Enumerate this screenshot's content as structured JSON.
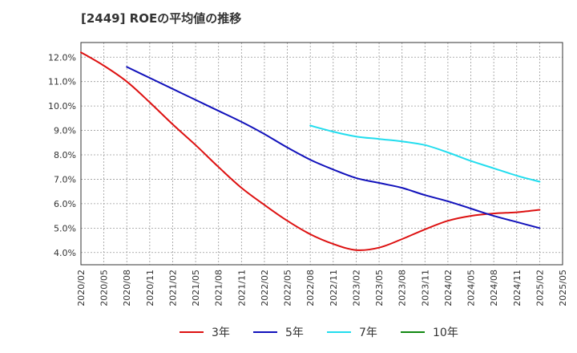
{
  "chart_data": {
    "type": "line",
    "title": "[2449]  ROEの平均値の推移",
    "xlabel": "",
    "ylabel": "",
    "ylim": [
      3.5,
      12.6
    ],
    "yticks": [
      4.0,
      5.0,
      6.0,
      7.0,
      8.0,
      9.0,
      10.0,
      11.0,
      12.0
    ],
    "ytick_labels": [
      "4.0%",
      "5.0%",
      "6.0%",
      "7.0%",
      "8.0%",
      "9.0%",
      "10.0%",
      "11.0%",
      "12.0%"
    ],
    "x": [
      "2020/02",
      "2020/05",
      "2020/08",
      "2020/11",
      "2021/02",
      "2021/05",
      "2021/08",
      "2021/11",
      "2022/02",
      "2022/05",
      "2022/08",
      "2022/11",
      "2023/02",
      "2023/05",
      "2023/08",
      "2023/11",
      "2024/02",
      "2024/05",
      "2024/08",
      "2024/11",
      "2025/02",
      "2025/05"
    ],
    "grid": true,
    "legend_position": "bottom",
    "series": [
      {
        "name": "3年",
        "color": "#dd1111",
        "values": [
          12.2,
          11.65,
          11.0,
          10.15,
          9.25,
          8.4,
          7.5,
          6.65,
          5.95,
          5.3,
          4.75,
          4.35,
          4.1,
          4.2,
          4.55,
          4.95,
          5.3,
          5.5,
          5.6,
          5.65,
          5.75,
          null
        ]
      },
      {
        "name": "5年",
        "color": "#1111bb",
        "values": [
          null,
          null,
          11.6,
          11.15,
          10.7,
          10.25,
          9.8,
          9.35,
          8.85,
          8.3,
          7.8,
          7.4,
          7.05,
          6.85,
          6.65,
          6.35,
          6.1,
          5.8,
          5.5,
          5.25,
          5.0,
          null
        ]
      },
      {
        "name": "7年",
        "color": "#22ddee",
        "values": [
          null,
          null,
          null,
          null,
          null,
          null,
          null,
          null,
          null,
          null,
          9.2,
          8.95,
          8.75,
          8.65,
          8.55,
          8.4,
          8.1,
          7.75,
          7.45,
          7.15,
          6.9,
          null
        ]
      },
      {
        "name": "10年",
        "color": "#118811",
        "values": [
          null,
          null,
          null,
          null,
          null,
          null,
          null,
          null,
          null,
          null,
          null,
          null,
          null,
          null,
          null,
          null,
          null,
          null,
          null,
          null,
          null,
          null
        ]
      }
    ]
  }
}
